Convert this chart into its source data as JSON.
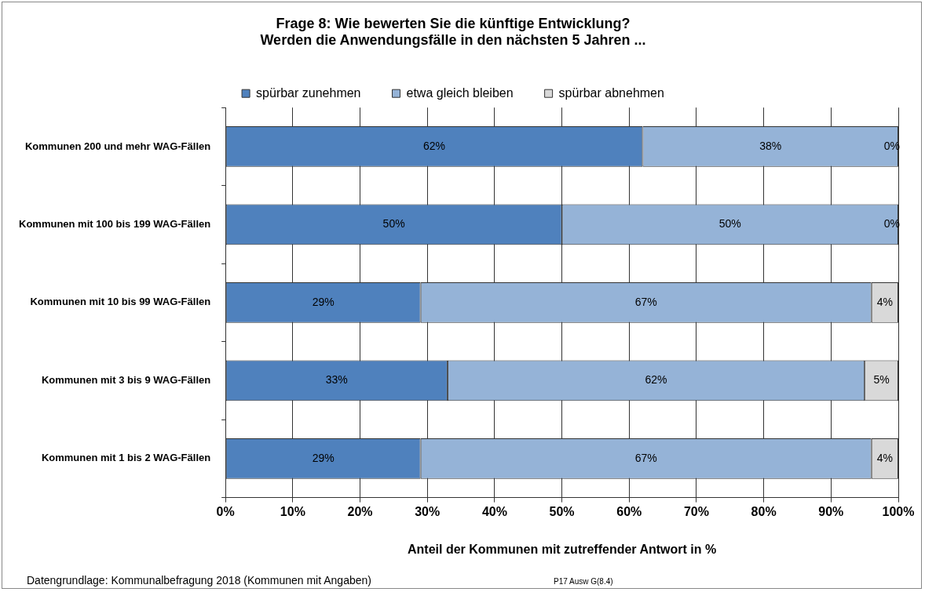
{
  "chart_data": {
    "type": "bar",
    "orientation": "horizontal",
    "stacked": true,
    "title": "Frage 8: Wie bewerten Sie die künftige Entwicklung?\nWerden die Anwendungsfälle in den nächsten 5 Jahren ...",
    "categories": [
      "Kommunen 200 und mehr WAG-Fällen",
      "Kommunen mit 100 bis 199 WAG-Fällen",
      "Kommunen mit 10 bis 99 WAG-Fällen",
      "Kommunen mit 3 bis 9 WAG-Fällen",
      "Kommunen mit 1 bis 2 WAG-Fällen"
    ],
    "series": [
      {
        "name": "spürbar zunehmen",
        "color": "#4f81bd",
        "values": [
          62,
          50,
          29,
          33,
          29
        ],
        "value_labels": [
          "62%",
          "50%",
          "29%",
          "33%",
          "29%"
        ]
      },
      {
        "name": "etwa gleich bleiben",
        "color": "#95b3d7",
        "values": [
          38,
          50,
          67,
          62,
          67
        ],
        "value_labels": [
          "38%",
          "50%",
          "67%",
          "62%",
          "67%"
        ]
      },
      {
        "name": "spürbar abnehmen",
        "color": "#d9d9d9",
        "values": [
          0,
          0,
          4,
          5,
          4
        ],
        "value_labels": [
          "0%",
          "0%",
          "4%",
          "5%",
          "4%"
        ]
      }
    ],
    "xlim": [
      0,
      100
    ],
    "xticks": [
      {
        "value": 0,
        "label": "0%"
      },
      {
        "value": 10,
        "label": "10%"
      },
      {
        "value": 20,
        "label": "20%"
      },
      {
        "value": 30,
        "label": "30%"
      },
      {
        "value": 40,
        "label": "40%"
      },
      {
        "value": 50,
        "label": "50%"
      },
      {
        "value": 60,
        "label": "60%"
      },
      {
        "value": 70,
        "label": "70%"
      },
      {
        "value": 80,
        "label": "80%"
      },
      {
        "value": 90,
        "label": "90%"
      },
      {
        "value": 100,
        "label": "100%"
      }
    ],
    "xlabel": "Anteil der Kommunen mit zutreffender Antwort in %",
    "grid": "x",
    "legend": "top",
    "annotations": [
      "Datengrundlage: Kommunalbefragung 2018 (Kommunen mit Angaben)",
      "P17 Ausw G(8.4)"
    ]
  }
}
